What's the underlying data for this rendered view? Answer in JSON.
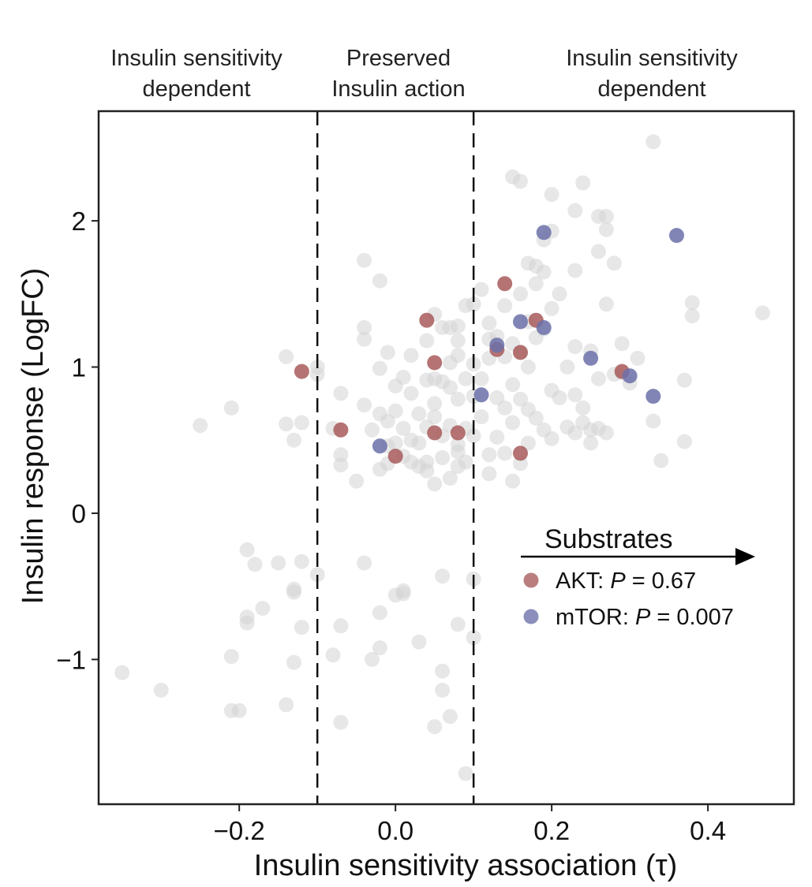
{
  "chart_data": {
    "type": "scatter",
    "title": "",
    "xlabel": "Insulin sensitivity association (τ)",
    "ylabel": "Insulin response (LogFC)",
    "xlim": [
      -0.38,
      0.51
    ],
    "ylim": [
      -1.99,
      2.75
    ],
    "x_ticks": [
      -0.2,
      0.0,
      0.2,
      0.4
    ],
    "x_tick_labels": [
      "−0.2",
      "0.0",
      "0.2",
      "0.4"
    ],
    "y_ticks": [
      -1,
      0,
      1,
      2
    ],
    "y_tick_labels": [
      "−1",
      "0",
      "1",
      "2"
    ],
    "grid": false,
    "thresholds": [
      -0.1,
      0.1
    ],
    "region_labels": [
      {
        "line1": "Insulin sensitivity",
        "line2": "dependent",
        "x": -0.25
      },
      {
        "line1": "Preserved",
        "line2": "Insulin action",
        "x": 0.0
      },
      {
        "line1": "Insulin sensitivity",
        "line2": "dependent",
        "x": 0.33
      }
    ],
    "legend": {
      "title": "Substrates",
      "placement": "right, below center",
      "entries": [
        {
          "label": "AKT: ",
          "p_symbol": "P",
          "p_text": " = 0.67",
          "color": "#a85a5a"
        },
        {
          "label": "mTOR: ",
          "p_symbol": "P",
          "p_text": " = 0.007",
          "color": "#6b70a8"
        }
      ]
    },
    "series": [
      {
        "id": "other",
        "color": "#d4d4d4",
        "points": [
          [
            -0.35,
            -1.09
          ],
          [
            -0.3,
            -1.21
          ],
          [
            -0.25,
            0.6
          ],
          [
            -0.21,
            0.72
          ],
          [
            -0.21,
            -0.98
          ],
          [
            -0.21,
            -1.35
          ],
          [
            -0.2,
            -1.35
          ],
          [
            -0.19,
            -0.25
          ],
          [
            -0.19,
            -0.71
          ],
          [
            -0.19,
            -0.75
          ],
          [
            -0.18,
            -0.35
          ],
          [
            -0.17,
            -0.65
          ],
          [
            -0.15,
            -0.34
          ],
          [
            -0.14,
            1.07
          ],
          [
            -0.14,
            0.61
          ],
          [
            -0.14,
            -1.31
          ],
          [
            -0.13,
            -0.54
          ],
          [
            -0.13,
            0.5
          ],
          [
            -0.13,
            -0.52
          ],
          [
            -0.12,
            -0.33
          ],
          [
            -0.12,
            0.62
          ],
          [
            -0.12,
            -0.78
          ],
          [
            -0.13,
            -1.02
          ],
          [
            -0.1,
            1.0
          ],
          [
            -0.1,
            0.95
          ],
          [
            -0.1,
            -0.42
          ],
          [
            -0.08,
            0.58
          ],
          [
            -0.08,
            -0.97
          ],
          [
            -0.07,
            0.82
          ],
          [
            -0.07,
            0.4
          ],
          [
            -0.07,
            0.33
          ],
          [
            -0.07,
            -0.77
          ],
          [
            -0.07,
            -1.43
          ],
          [
            -0.05,
            0.22
          ],
          [
            -0.04,
            1.73
          ],
          [
            -0.04,
            1.19
          ],
          [
            -0.04,
            1.27
          ],
          [
            -0.04,
            -0.34
          ],
          [
            -0.04,
            0.74
          ],
          [
            -0.03,
            0.57
          ],
          [
            -0.03,
            -1.0
          ],
          [
            -0.02,
            1.59
          ],
          [
            -0.02,
            0.99
          ],
          [
            -0.02,
            0.68
          ],
          [
            -0.02,
            0.3
          ],
          [
            -0.02,
            -0.68
          ],
          [
            -0.02,
            -0.92
          ],
          [
            -0.01,
            0.63
          ],
          [
            -0.01,
            1.1
          ],
          [
            -0.01,
            0.46
          ],
          [
            -0.01,
            0.34
          ],
          [
            0.0,
            0.87
          ],
          [
            0.0,
            0.7
          ],
          [
            0.0,
            0.48
          ],
          [
            0.0,
            -0.56
          ],
          [
            0.01,
            0.93
          ],
          [
            0.01,
            0.58
          ],
          [
            0.01,
            0.39
          ],
          [
            0.01,
            -0.53
          ],
          [
            0.01,
            -0.55
          ],
          [
            0.02,
            1.08
          ],
          [
            0.02,
            0.82
          ],
          [
            0.02,
            0.5
          ],
          [
            0.02,
            0.35
          ],
          [
            0.03,
            0.68
          ],
          [
            0.03,
            0.48
          ],
          [
            0.03,
            0.32
          ],
          [
            0.03,
            -0.88
          ],
          [
            0.04,
            1.18
          ],
          [
            0.04,
            0.91
          ],
          [
            0.04,
            0.59
          ],
          [
            0.04,
            0.29
          ],
          [
            0.04,
            0.35
          ],
          [
            0.05,
            1.36
          ],
          [
            0.05,
            0.92
          ],
          [
            0.05,
            0.66
          ],
          [
            0.05,
            0.2
          ],
          [
            0.05,
            -1.46
          ],
          [
            0.05,
            0.75
          ],
          [
            0.06,
            1.27
          ],
          [
            0.06,
            0.9
          ],
          [
            0.06,
            0.53
          ],
          [
            0.06,
            0.38
          ],
          [
            0.06,
            -0.43
          ],
          [
            0.06,
            -1.08
          ],
          [
            0.06,
            -1.21
          ],
          [
            0.07,
            1.27
          ],
          [
            0.07,
            1.03
          ],
          [
            0.07,
            0.86
          ],
          [
            0.07,
            0.6
          ],
          [
            0.07,
            0.24
          ],
          [
            0.07,
            -1.39
          ],
          [
            0.08,
            1.28
          ],
          [
            0.08,
            1.08
          ],
          [
            0.08,
            0.78
          ],
          [
            0.08,
            0.47
          ],
          [
            0.08,
            0.42
          ],
          [
            0.08,
            0.32
          ],
          [
            0.08,
            1.18
          ],
          [
            0.09,
            1.42
          ],
          [
            0.09,
            0.92
          ],
          [
            0.09,
            0.58
          ],
          [
            0.09,
            0.35
          ],
          [
            0.09,
            -1.78
          ],
          [
            0.08,
            -0.76
          ],
          [
            0.1,
            1.43
          ],
          [
            0.1,
            1.02
          ],
          [
            0.1,
            0.8
          ],
          [
            0.1,
            0.53
          ],
          [
            0.1,
            -0.85
          ],
          [
            0.1,
            -0.45
          ],
          [
            0.11,
            1.53
          ],
          [
            0.11,
            0.92
          ],
          [
            0.11,
            0.66
          ],
          [
            0.12,
            1.3
          ],
          [
            0.12,
            1.06
          ],
          [
            0.12,
            0.4
          ],
          [
            0.12,
            0.27
          ],
          [
            0.13,
            1.21
          ],
          [
            0.13,
            0.79
          ],
          [
            0.13,
            0.52
          ],
          [
            0.14,
            1.42
          ],
          [
            0.14,
            1.07
          ],
          [
            0.14,
            0.72
          ],
          [
            0.14,
            0.41
          ],
          [
            0.15,
            2.3
          ],
          [
            0.15,
            1.16
          ],
          [
            0.15,
            0.88
          ],
          [
            0.15,
            0.62
          ],
          [
            0.15,
            0.22
          ],
          [
            0.16,
            2.27
          ],
          [
            0.16,
            1.5
          ],
          [
            0.16,
            1.1
          ],
          [
            0.16,
            0.78
          ],
          [
            0.16,
            0.34
          ],
          [
            0.17,
            1.71
          ],
          [
            0.17,
            1.31
          ],
          [
            0.17,
            1.0
          ],
          [
            0.17,
            0.71
          ],
          [
            0.17,
            0.48
          ],
          [
            0.18,
            1.69
          ],
          [
            0.18,
            1.57
          ],
          [
            0.18,
            1.2
          ],
          [
            0.18,
            0.65
          ],
          [
            0.19,
            1.87
          ],
          [
            0.19,
            1.65
          ],
          [
            0.19,
            1.26
          ],
          [
            0.19,
            0.57
          ],
          [
            0.2,
            2.18
          ],
          [
            0.2,
            1.93
          ],
          [
            0.2,
            1.4
          ],
          [
            0.2,
            0.84
          ],
          [
            0.2,
            0.51
          ],
          [
            0.21,
            1.5
          ],
          [
            0.21,
            0.79
          ],
          [
            0.22,
            1.0
          ],
          [
            0.22,
            0.59
          ],
          [
            0.23,
            1.66
          ],
          [
            0.23,
            1.14
          ],
          [
            0.23,
            0.81
          ],
          [
            0.23,
            0.55
          ],
          [
            0.24,
            2.26
          ],
          [
            0.24,
            0.72
          ],
          [
            0.24,
            0.62
          ],
          [
            0.25,
            1.11
          ],
          [
            0.25,
            0.57
          ],
          [
            0.25,
            0.48
          ],
          [
            0.26,
            2.03
          ],
          [
            0.26,
            1.79
          ],
          [
            0.26,
            0.92
          ],
          [
            0.26,
            0.58
          ],
          [
            0.27,
            2.03
          ],
          [
            0.27,
            1.43
          ],
          [
            0.27,
            1.94
          ],
          [
            0.27,
            0.55
          ],
          [
            0.28,
            1.71
          ],
          [
            0.28,
            0.95
          ],
          [
            0.29,
            1.16
          ],
          [
            0.3,
            0.89
          ],
          [
            0.31,
            1.06
          ],
          [
            0.33,
            2.54
          ],
          [
            0.33,
            0.63
          ],
          [
            0.34,
            0.36
          ],
          [
            0.37,
            0.91
          ],
          [
            0.37,
            0.49
          ],
          [
            0.38,
            1.35
          ],
          [
            0.38,
            1.44
          ],
          [
            0.47,
            1.37
          ],
          [
            0.23,
            2.07
          ],
          [
            0.29,
            0.96
          ],
          [
            0.12,
            1.19
          ]
        ]
      },
      {
        "id": "akt",
        "color": "#a85a5a",
        "points": [
          [
            -0.12,
            0.97
          ],
          [
            -0.07,
            0.57
          ],
          [
            0.0,
            0.39
          ],
          [
            0.04,
            1.32
          ],
          [
            0.05,
            1.03
          ],
          [
            0.05,
            0.55
          ],
          [
            0.08,
            0.55
          ],
          [
            0.14,
            1.57
          ],
          [
            0.13,
            1.12
          ],
          [
            0.16,
            1.1
          ],
          [
            0.16,
            0.41
          ],
          [
            0.18,
            1.32
          ],
          [
            0.29,
            0.97
          ]
        ]
      },
      {
        "id": "mtor",
        "color": "#6b70a8",
        "points": [
          [
            -0.02,
            0.46
          ],
          [
            0.11,
            0.81
          ],
          [
            0.13,
            1.15
          ],
          [
            0.16,
            1.31
          ],
          [
            0.19,
            1.27
          ],
          [
            0.19,
            1.92
          ],
          [
            0.25,
            1.06
          ],
          [
            0.3,
            0.94
          ],
          [
            0.33,
            0.8
          ],
          [
            0.36,
            1.9
          ]
        ]
      }
    ]
  }
}
